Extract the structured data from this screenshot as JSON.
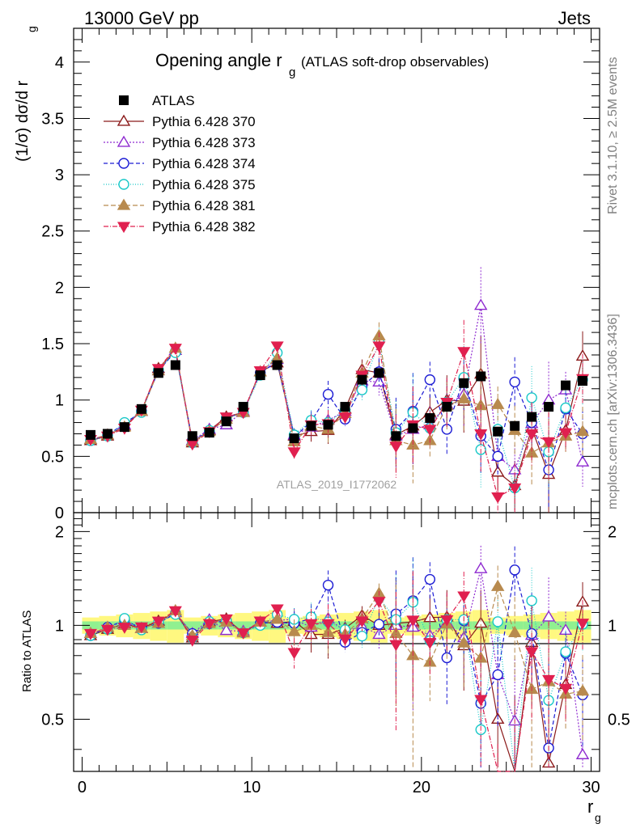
{
  "header": {
    "left": "13000 GeV pp",
    "right": "Jets"
  },
  "side": {
    "rivet": "Rivet 3.1.10, ≥ 2.5M events",
    "mcplots": "mcplots.cern.ch [arXiv:1306.3436]"
  },
  "chart_data": {
    "type": "scatter",
    "title": "Opening angle r",
    "title_sub": "g",
    "title_suffix": "(ATLAS soft-drop observables)",
    "analysis_id": "ATLAS_2019_I1772062",
    "xlabel": "r",
    "xlabel_sub": "g",
    "ylabel": "(1/σ) dσ/d r",
    "ylabel_sub": "g",
    "ratio_ylabel": "Ratio to ATLAS",
    "xlim": [
      -0.5,
      30.5
    ],
    "ylim": [
      0,
      4.3
    ],
    "ratio_ylim": [
      0.34,
      2.3
    ],
    "x_ticks": [
      "0",
      "10",
      "20",
      "30"
    ],
    "y_ticks": [
      "0",
      "0.5",
      "1",
      "1.5",
      "2",
      "2.5",
      "3",
      "3.5",
      "4"
    ],
    "ratio_ticks": [
      "0.5",
      "1",
      "2"
    ],
    "x": [
      0.5,
      1.5,
      2.5,
      3.5,
      4.5,
      5.5,
      6.5,
      7.5,
      8.5,
      9.5,
      10.5,
      11.5,
      12.5,
      13.5,
      14.5,
      15.5,
      16.5,
      17.5,
      18.5,
      19.5,
      20.5,
      21.5,
      22.5,
      23.5,
      24.5,
      25.5,
      26.5,
      27.5,
      28.5,
      29.5
    ],
    "data": {
      "name": "ATLAS",
      "color": "#000000",
      "values": [
        0.69,
        0.7,
        0.76,
        0.92,
        1.24,
        1.31,
        0.68,
        0.71,
        0.81,
        0.94,
        1.22,
        1.31,
        0.66,
        0.77,
        0.78,
        0.94,
        1.18,
        1.24,
        0.68,
        0.75,
        0.84,
        0.94,
        1.15,
        1.21,
        0.72,
        0.77,
        0.85,
        0.94,
        1.13,
        1.17
      ]
    },
    "series": [
      {
        "name": "Pythia 6.428 370",
        "color": "#8b1a1a",
        "marker": "triangle-open",
        "dash": "",
        "values": [
          0.64,
          0.68,
          0.77,
          0.9,
          1.28,
          1.44,
          0.62,
          0.73,
          0.85,
          0.89,
          1.25,
          1.33,
          0.68,
          0.72,
          0.73,
          0.92,
          1.27,
          1.24,
          0.69,
          0.77,
          0.89,
          1.0,
          0.99,
          1.23,
          0.36,
          0.24,
          0.75,
          0.34,
          0.73,
          1.39
        ]
      },
      {
        "name": "Pythia 6.428 373",
        "color": "#8f2bd0",
        "marker": "triangle-open",
        "dash": "2,2",
        "values": [
          0.65,
          0.69,
          0.78,
          0.9,
          1.26,
          1.44,
          0.64,
          0.74,
          0.78,
          0.9,
          1.25,
          1.36,
          0.69,
          0.76,
          0.82,
          0.9,
          1.17,
          1.16,
          0.68,
          0.74,
          0.78,
          0.96,
          1.05,
          1.84,
          0.5,
          0.38,
          0.79,
          1.0,
          1.09,
          0.45
        ]
      },
      {
        "name": "Pythia 6.428 374",
        "color": "#1c1cd4",
        "marker": "circle-open",
        "dash": "5,3",
        "values": [
          0.64,
          0.69,
          0.79,
          0.9,
          1.26,
          1.43,
          0.64,
          0.72,
          0.84,
          0.89,
          1.24,
          1.34,
          0.67,
          0.81,
          1.05,
          0.83,
          1.12,
          1.25,
          0.74,
          0.9,
          1.18,
          0.74,
          1.19,
          0.68,
          0.5,
          1.16,
          0.8,
          0.38,
          0.92,
          0.7
        ]
      },
      {
        "name": "Pythia 6.428 375",
        "color": "#19c8c8",
        "marker": "circle-open",
        "dash": "1,2",
        "values": [
          0.64,
          0.68,
          0.8,
          0.89,
          1.27,
          1.42,
          0.62,
          0.73,
          0.84,
          0.89,
          1.22,
          1.42,
          0.69,
          0.82,
          0.8,
          0.91,
          1.09,
          1.52,
          0.71,
          0.89,
          0.75,
          0.98,
          1.2,
          0.56,
          0.74,
          0.22,
          1.02,
          0.54,
          0.93,
          1.18
        ]
      },
      {
        "name": "Pythia 6.428 381",
        "color": "#b88a4e",
        "marker": "triangle-filled",
        "dash": "6,3",
        "values": [
          0.65,
          0.69,
          0.76,
          0.9,
          1.26,
          1.46,
          0.63,
          0.72,
          0.83,
          0.89,
          1.25,
          1.37,
          0.63,
          0.77,
          0.74,
          0.88,
          1.24,
          1.57,
          0.64,
          0.6,
          0.64,
          0.95,
          1.01,
          0.95,
          0.96,
          0.73,
          0.53,
          0.62,
          0.68,
          0.72
        ]
      },
      {
        "name": "Pythia 6.428 382",
        "color": "#e0204f",
        "marker": "triangle-down-filled",
        "dash": "6,2,1,2",
        "values": [
          0.65,
          0.68,
          0.75,
          0.91,
          1.28,
          1.46,
          0.61,
          0.72,
          0.85,
          0.89,
          1.26,
          1.48,
          0.54,
          0.78,
          0.79,
          0.85,
          1.22,
          1.48,
          0.59,
          0.78,
          0.74,
          0.98,
          1.43,
          0.7,
          0.14,
          0.22,
          0.7,
          0.63,
          0.71,
          1.19
        ]
      }
    ]
  }
}
